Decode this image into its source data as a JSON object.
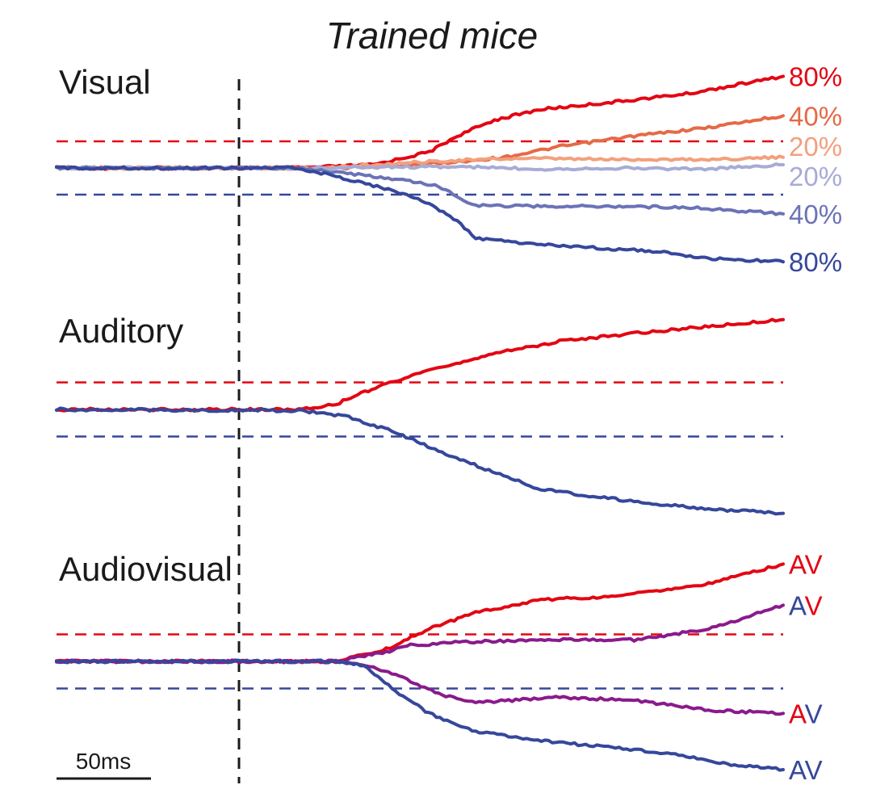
{
  "chart_data": {
    "type": "line",
    "title": "Trained mice",
    "scale_bar": "50ms",
    "x_units": "ms",
    "x_range_ms": [
      -100,
      290
    ],
    "stimulus_onset_ms": 0,
    "y_range": [
      -1.0,
      1.0
    ],
    "grid": false,
    "legend": "none; labels at line ends",
    "colors": {
      "red": "#e30613",
      "blue": "#36479b",
      "purple": "#8a1a8c",
      "red40": "#e56a47",
      "red20": "#f2a07e",
      "blue40": "#6b73b7",
      "blue20": "#a7abd6",
      "black": "#1a1a1a"
    },
    "panels": [
      {
        "title": "Visual",
        "thresholds": [
          0.25,
          -0.25
        ],
        "series": [
          {
            "name": "80%",
            "label": "80%",
            "color": "#e30613",
            "points": [
              [
                -100,
                0
              ],
              [
                30,
                0
              ],
              [
                70,
                0.03
              ],
              [
                100,
                0.15
              ],
              [
                115,
                0.3
              ],
              [
                135,
                0.45
              ],
              [
                160,
                0.55
              ],
              [
                200,
                0.62
              ],
              [
                240,
                0.7
              ],
              [
                290,
                0.86
              ]
            ]
          },
          {
            "name": "40%",
            "label": "40%",
            "color": "#e56a47",
            "points": [
              [
                -100,
                0
              ],
              [
                50,
                0
              ],
              [
                80,
                0.02
              ],
              [
                110,
                0.05
              ],
              [
                140,
                0.1
              ],
              [
                170,
                0.2
              ],
              [
                210,
                0.3
              ],
              [
                250,
                0.38
              ],
              [
                290,
                0.49
              ]
            ]
          },
          {
            "name": "20%",
            "label": "20%",
            "color": "#f2a07e",
            "points": [
              [
                -100,
                0
              ],
              [
                40,
                0
              ],
              [
                80,
                0.04
              ],
              [
                110,
                0.07
              ],
              [
                150,
                0.09
              ],
              [
                200,
                0.08
              ],
              [
                250,
                0.08
              ],
              [
                290,
                0.1
              ]
            ]
          },
          {
            "name": "20%",
            "label": "20%",
            "color": "#a7abd6",
            "points": [
              [
                -100,
                0
              ],
              [
                40,
                0
              ],
              [
                80,
                0.01
              ],
              [
                120,
                0.01
              ],
              [
                160,
                -0.01
              ],
              [
                200,
                0.0
              ],
              [
                250,
                -0.01
              ],
              [
                290,
                0.03
              ]
            ]
          },
          {
            "name": "40%",
            "label": "40%",
            "color": "#6b73b7",
            "points": [
              [
                -100,
                0
              ],
              [
                30,
                0
              ],
              [
                50,
                -0.04
              ],
              [
                80,
                -0.1
              ],
              [
                105,
                -0.17
              ],
              [
                115,
                -0.27
              ],
              [
                125,
                -0.35
              ],
              [
                160,
                -0.36
              ],
              [
                200,
                -0.36
              ],
              [
                240,
                -0.37
              ],
              [
                290,
                -0.43
              ]
            ]
          },
          {
            "name": "80%",
            "label": "80%",
            "color": "#36479b",
            "points": [
              [
                -100,
                0
              ],
              [
                30,
                0
              ],
              [
                60,
                -0.12
              ],
              [
                80,
                -0.21
              ],
              [
                100,
                -0.33
              ],
              [
                115,
                -0.5
              ],
              [
                125,
                -0.66
              ],
              [
                160,
                -0.72
              ],
              [
                220,
                -0.78
              ],
              [
                250,
                -0.85
              ],
              [
                290,
                -0.88
              ]
            ]
          }
        ]
      },
      {
        "title": "Auditory",
        "thresholds": [
          0.25,
          -0.25
        ],
        "series": [
          {
            "name": "red",
            "label": "",
            "color": "#e30613",
            "points": [
              [
                -100,
                0
              ],
              [
                30,
                0
              ],
              [
                50,
                0.05
              ],
              [
                75,
                0.23
              ],
              [
                105,
                0.38
              ],
              [
                130,
                0.5
              ],
              [
                170,
                0.63
              ],
              [
                220,
                0.72
              ],
              [
                290,
                0.83
              ]
            ]
          },
          {
            "name": "blue",
            "label": "",
            "color": "#36479b",
            "points": [
              [
                -100,
                0
              ],
              [
                30,
                -0.01
              ],
              [
                55,
                -0.06
              ],
              [
                80,
                -0.2
              ],
              [
                105,
                -0.38
              ],
              [
                130,
                -0.55
              ],
              [
                160,
                -0.74
              ],
              [
                210,
                -0.85
              ],
              [
                250,
                -0.92
              ],
              [
                290,
                -0.96
              ]
            ]
          }
        ]
      },
      {
        "title": "Audiovisual",
        "thresholds": [
          0.25,
          -0.25
        ],
        "series": [
          {
            "name": "AV",
            "label": "AV",
            "color": "#e30613",
            "points": [
              [
                -100,
                0
              ],
              [
                50,
                0
              ],
              [
                75,
                0.1
              ],
              [
                100,
                0.3
              ],
              [
                125,
                0.45
              ],
              [
                160,
                0.57
              ],
              [
                200,
                0.6
              ],
              [
                250,
                0.72
              ],
              [
                290,
                0.9
              ]
            ]
          },
          {
            "name": "AV",
            "label": "AV",
            "color": "#8a1a8c",
            "points": [
              [
                -100,
                0
              ],
              [
                50,
                0
              ],
              [
                75,
                0.08
              ],
              [
                90,
                0.15
              ],
              [
                120,
                0.18
              ],
              [
                170,
                0.2
              ],
              [
                210,
                0.2
              ],
              [
                250,
                0.3
              ],
              [
                290,
                0.52
              ]
            ]
          },
          {
            "name": "AV",
            "label": "AV",
            "color": "#8a1a8c",
            "points": [
              [
                -100,
                0
              ],
              [
                50,
                0
              ],
              [
                70,
                -0.05
              ],
              [
                90,
                -0.18
              ],
              [
                105,
                -0.3
              ],
              [
                125,
                -0.38
              ],
              [
                170,
                -0.33
              ],
              [
                210,
                -0.36
              ],
              [
                250,
                -0.45
              ],
              [
                290,
                -0.48
              ]
            ]
          },
          {
            "name": "AV",
            "label": "AV",
            "color": "#36479b",
            "points": [
              [
                -100,
                0
              ],
              [
                50,
                0
              ],
              [
                65,
                -0.04
              ],
              [
                80,
                -0.25
              ],
              [
                100,
                -0.48
              ],
              [
                125,
                -0.65
              ],
              [
                170,
                -0.75
              ],
              [
                230,
                -0.85
              ],
              [
                260,
                -0.95
              ],
              [
                290,
                -1.0
              ]
            ]
          }
        ]
      }
    ]
  }
}
